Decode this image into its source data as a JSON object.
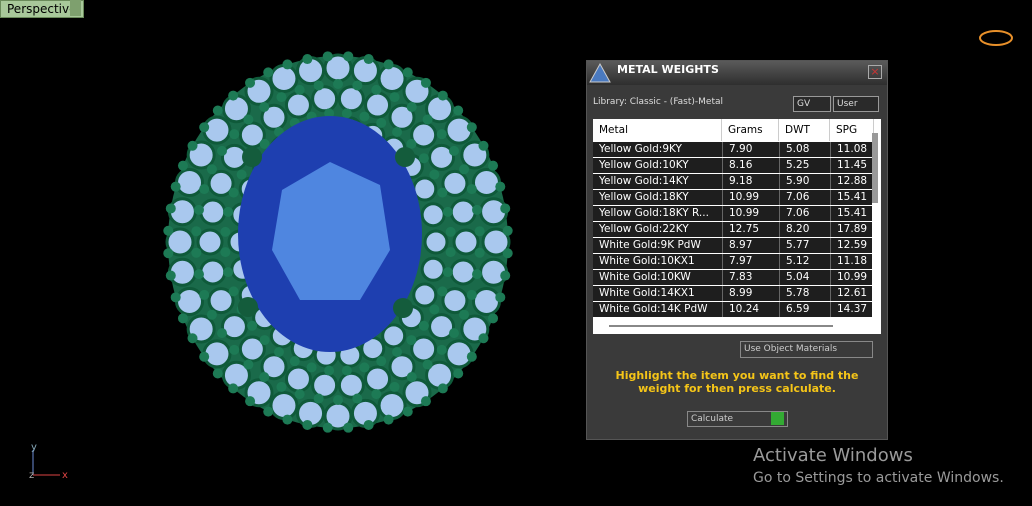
{
  "viewport": {
    "label": "Perspective"
  },
  "axes": {
    "y": "y",
    "z": "z",
    "x": "x"
  },
  "dialog": {
    "title": "METAL WEIGHTS",
    "library": "Library: Classic - (Fast)-Metal",
    "buttons": {
      "gv": "GV",
      "user": "User"
    },
    "table": {
      "headers": [
        "Metal",
        "Grams",
        "DWT",
        "SPG"
      ],
      "rows": [
        [
          "Yellow Gold:9KY",
          "7.90",
          "5.08",
          "11.08"
        ],
        [
          "Yellow Gold:10KY",
          "8.16",
          "5.25",
          "11.45"
        ],
        [
          "Yellow Gold:14KY",
          "9.18",
          "5.90",
          "12.88"
        ],
        [
          "Yellow Gold:18KY",
          "10.99",
          "7.06",
          "15.41"
        ],
        [
          "Yellow Gold:18KY R...",
          "10.99",
          "7.06",
          "15.41"
        ],
        [
          "Yellow Gold:22KY",
          "12.75",
          "8.20",
          "17.89"
        ],
        [
          "White Gold:9K PdW",
          "8.97",
          "5.77",
          "12.59"
        ],
        [
          "White Gold:10KX1",
          "7.97",
          "5.12",
          "11.18"
        ],
        [
          "White Gold:10KW",
          "7.83",
          "5.04",
          "10.99"
        ],
        [
          "White Gold:14KX1",
          "8.99",
          "5.78",
          "12.61"
        ],
        [
          "White Gold:14K PdW",
          "10.24",
          "6.59",
          "14.37"
        ]
      ]
    },
    "use_object_materials": "Use Object Materials",
    "instruction": "Highlight the item you want to find the weight for then press calculate.",
    "calculate": "Calculate"
  },
  "watermark": {
    "title": "Activate Windows",
    "subtitle": "Go to Settings to activate Windows."
  }
}
